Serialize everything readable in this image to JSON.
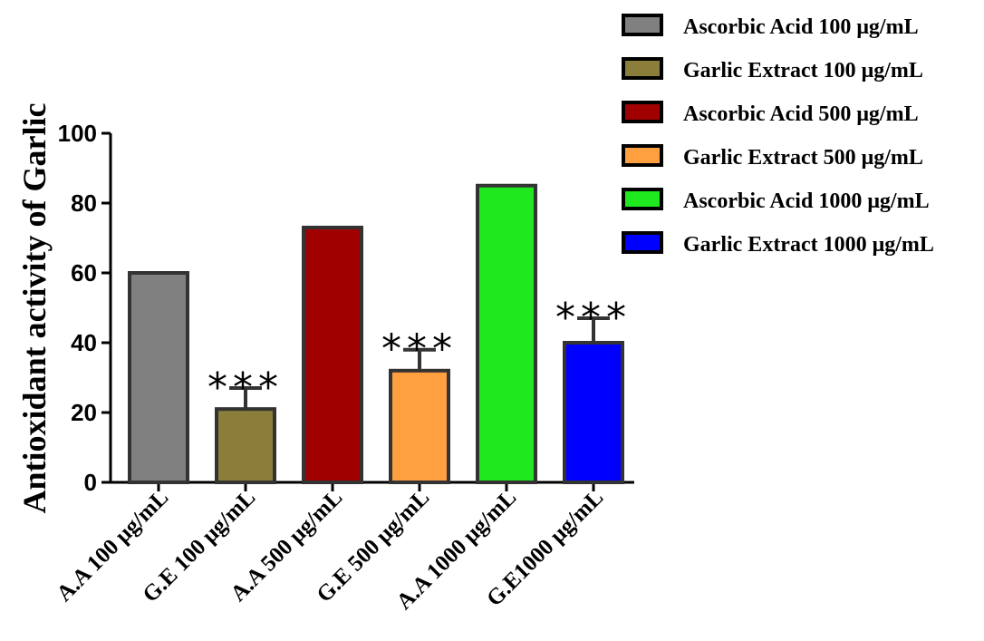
{
  "chart_data": {
    "type": "bar",
    "title": "",
    "xlabel": "",
    "ylabel": "Antioxidant activity of Garlic",
    "ylim": [
      0,
      100
    ],
    "yticks": [
      0,
      20,
      40,
      60,
      80,
      100
    ],
    "grid": false,
    "legend_position": "top-right",
    "categories": [
      "A.A 100 μg/mL",
      "G.E 100 μg/mL",
      "A.A  500 μg/mL",
      "G.E 500 μg/mL",
      "A.A 1000 μg/mL",
      "G.E1000 μg/mL"
    ],
    "values": [
      60,
      21,
      73,
      32,
      85,
      40
    ],
    "errors": [
      0,
      6,
      0,
      6,
      0,
      7
    ],
    "significance": [
      "",
      "***",
      "",
      "***",
      "",
      "***"
    ],
    "colors": [
      "#808080",
      "#8b7d3a",
      "#a00000",
      "#ffa040",
      "#1fe81f",
      "#0000ff"
    ],
    "legend": [
      "Ascorbic Acid 100 μg/mL",
      "Garlic Extract 100 μg/mL",
      "Ascorbic Acid  500 μg/mL",
      "Garlic Extract 500 μg/mL",
      "Ascorbic Acid 1000 μg/mL",
      "Garlic Extract 1000 μg/mL"
    ]
  }
}
